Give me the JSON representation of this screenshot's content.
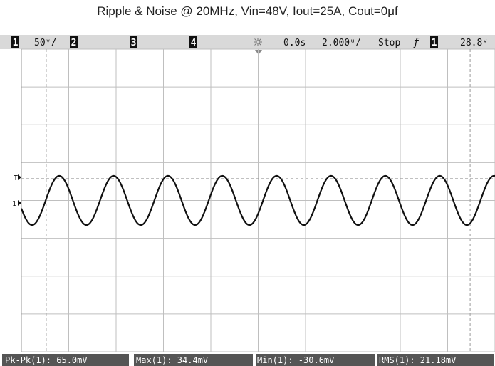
{
  "chart_data": {
    "type": "line",
    "title": "Ripple & Noise @ 20MHz, Vin=48V, Iout=25A, Cout=0μf",
    "xlabel": "",
    "ylabel": "",
    "grid": true,
    "x_unit": "μs",
    "y_unit": "mV",
    "xlim": [
      -10,
      10
    ],
    "ylim": [
      -200,
      200
    ],
    "ch1_offset_mV": -28.8,
    "waveform": {
      "name": "",
      "shape": "sine",
      "amplitude_mV": 32.5,
      "center_mV": 0,
      "period_us": 2.295,
      "first_peak_us": -8.4,
      "x": [
        -10.0,
        -9.5,
        -9.0,
        -8.4,
        -8.0,
        -7.5,
        -7.0,
        -6.5,
        -6.1,
        -5.5,
        -5.0,
        -4.5,
        -3.8,
        -3.5,
        -3.0,
        -2.5,
        -2.1,
        -1.5,
        -1.0,
        -0.5,
        0.2,
        0.5,
        1.0,
        1.5,
        1.9,
        2.5,
        3.0,
        3.5,
        4.2,
        4.5,
        5.0,
        5.5,
        5.9,
        6.5,
        7.0,
        7.5,
        8.3,
        8.5,
        9.0,
        9.5,
        10.0
      ],
      "y": [
        -31.0,
        -23.5,
        7.8,
        32.5,
        24.0,
        0.9,
        -24.6,
        -32.1,
        -31.5,
        -7.6,
        17.5,
        32.0,
        31.7,
        20.8,
        -3.2,
        -27.1,
        -32.5,
        -16.4,
        12.9,
        29.1,
        32.5,
        27.5,
        6.4,
        -21.4,
        -32.5,
        -22.9,
        1.6,
        25.7,
        32.5,
        27.5,
        6.4,
        -21.4,
        -32.5,
        -22.9,
        1.6,
        25.7,
        32.5,
        28.7,
        9.3,
        -19.0,
        -30.3
      ]
    },
    "status_bar": {
      "ch1_num": "1",
      "ch1_scale": "50ᵛ/",
      "ch2_num": "2",
      "ch3_num": "3",
      "ch4_num": "4",
      "delay": "0.0s",
      "timebase": "2.000ᵘ/",
      "run_state": "Stop",
      "trigger_slope": "ƒ",
      "trig_ch_num": "1",
      "trig_level": "28.8ᵛ"
    },
    "markers": {
      "trigger_level": "T",
      "ch1_ground": "1"
    },
    "measurements": [
      "Pk-Pk(1): 65.0mV",
      "Max(1): 34.4mV",
      "Min(1): -30.6mV",
      "RMS(1): 21.18mV"
    ],
    "colors": {
      "trace": "#111111",
      "grid": "#bfbfbf",
      "status_bar_bg": "#d9d9d9",
      "channel_badge": "#111111",
      "measurement_bg": "#555555"
    }
  }
}
